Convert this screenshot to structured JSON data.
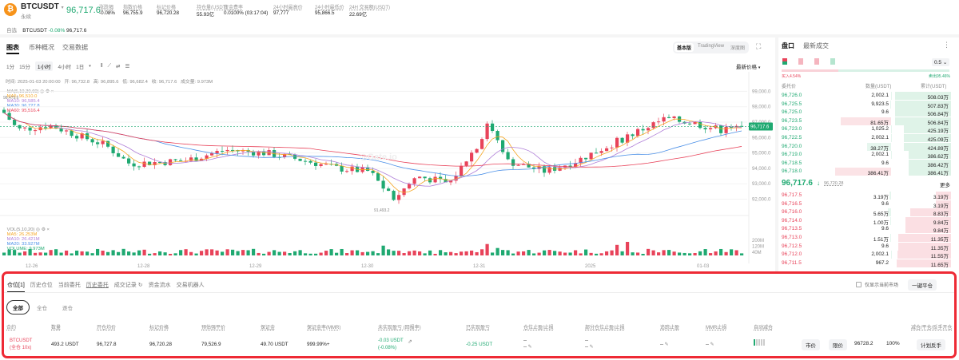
{
  "header": {
    "symbol": "BTCUSDT",
    "sub": "永续",
    "last_price": "96,717.6",
    "stats": [
      {
        "label": "涨跌幅",
        "value": "-0.08%",
        "color": "green"
      },
      {
        "label": "指数价格",
        "value": "96,755.9"
      },
      {
        "label": "标记价格",
        "value": "96,720.28"
      },
      {
        "label": "持仓量(USDT)",
        "value": "55.93亿"
      },
      {
        "label": "资金费率",
        "value": "0.0100% (03:17:04)"
      },
      {
        "label": "24小时最高价",
        "value": "97,777"
      },
      {
        "label": "24小时最低价",
        "value": "95,866.5"
      },
      {
        "label": "24H 交易额(USDT)",
        "value": "22.69亿"
      }
    ]
  },
  "watch": {
    "label": "自选",
    "symbol": "BTCUSDT",
    "change": "-0.08%",
    "price": "96,717.6"
  },
  "chart_tabs": [
    "图表",
    "币种概况",
    "交易数据"
  ],
  "intervals": [
    "1分",
    "15分",
    "1小时",
    "4小时",
    "1日"
  ],
  "view_modes": [
    "基本版",
    "TradingView",
    "深度图"
  ],
  "price_type": "最新价格",
  "ohlc": "时间: 2025-01-03 20:00:00   开: 96,732.8   高: 96,895.6   低: 96,682.4   收: 96,717.6   成交量: 9.973M",
  "ma": {
    "label": "MA(5,10,30,60)",
    "ma5": "MA5: 96,510.0",
    "ma10": "MA10: 96,585.4",
    "ma30": "MA30: 96,727.8",
    "ma60": "MA60: 95,516.4"
  },
  "vol": {
    "label": "VOL(5,10,20)",
    "ma5": "MA5: 26.253M",
    "ma10": "MA10: 26.421M",
    "ma20": "MA20: 33.927M",
    "volume": "VOLUME: 9.973M"
  },
  "price_axis": [
    "99,000.0",
    "98,000.0",
    "97,000.0",
    "96,000.0",
    "95,000.0",
    "94,000.0",
    "93,000.0",
    "92,000.0"
  ],
  "price_tag": "96,717.6",
  "high_label": "98,473.6",
  "low_label": "91,493.2",
  "vol_axis": [
    "200M",
    "120M",
    "40M"
  ],
  "x_axis": [
    "12-26",
    "12-28",
    "12-29",
    "12-30",
    "12-31",
    "2025",
    "01-03"
  ],
  "colors": {
    "up": "#e8435a",
    "down": "#1fa971",
    "ma5": "#f5a623",
    "ma10": "#b07fd8",
    "ma30": "#4a8fe7",
    "ma60": "#e8435a"
  },
  "orderbook": {
    "tabs": [
      "盘口",
      "最新成交"
    ],
    "precision": "0.5",
    "buy_pct": "买入4.54%",
    "sell_pct": "卖出95.46%",
    "headers": [
      "委托价",
      "数量(USDT)",
      "累计(USDT)"
    ],
    "asks": [
      [
        "96,726.0",
        "2,002.1",
        "508.03万"
      ],
      [
        "96,725.5",
        "9,923.5",
        "507.83万"
      ],
      [
        "96,725.0",
        "9.6",
        "506.84万"
      ],
      [
        "96,723.5",
        "81.65万",
        "506.84万"
      ],
      [
        "96,723.0",
        "1,025.2",
        "425.19万"
      ],
      [
        "96,722.5",
        "2,002.1",
        "425.09万"
      ],
      [
        "96,720.0",
        "38.27万",
        "424.89万"
      ],
      [
        "96,719.0",
        "2,002.1",
        "386.62万"
      ],
      [
        "96,718.5",
        "9.6",
        "386.42万"
      ],
      [
        "96,718.0",
        "386.41万",
        "386.41万"
      ]
    ],
    "mid_price": "96,717.6",
    "mark": "96,720.28",
    "more": "更多",
    "bids": [
      [
        "96,717.5",
        "3.19万",
        "3.19万"
      ],
      [
        "96,716.5",
        "9.6",
        "3.19万"
      ],
      [
        "96,716.0",
        "5.65万",
        "8.83万"
      ],
      [
        "96,714.0",
        "1.00万",
        "9.84万"
      ],
      [
        "96,713.5",
        "9.6",
        "9.84万"
      ],
      [
        "96,713.0",
        "1.51万",
        "11.35万"
      ],
      [
        "96,712.5",
        "9.6",
        "11.35万"
      ],
      [
        "96,712.0",
        "2,002.1",
        "11.55万"
      ],
      [
        "96,711.5",
        "967.2",
        "11.65万"
      ]
    ]
  },
  "bottom": {
    "tabs": [
      "仓位[1]",
      "历史仓位",
      "当前委托",
      "历史委托",
      "成交记录",
      "资金流水",
      "交易机器人"
    ],
    "filters": [
      "全部",
      "全仓",
      "逐仓"
    ],
    "only_current": "仅显示当前市场",
    "close_all": "一键平仓",
    "columns": [
      "合约",
      "数量",
      "开仓均价",
      "标记价格",
      "预估强平价",
      "保证金",
      "保证金率(MMR)",
      "未实现盈亏 (回报率)",
      "已实现盈亏",
      "仓位止盈/止损",
      "部分仓位止盈/止损",
      "追踪止盈",
      "MMR止损",
      "自动减仓",
      "减仓/平仓/反手开仓"
    ],
    "row": {
      "contract": "BTCUSDT",
      "mode": "(全仓 10x)",
      "qty": "493.2 USDT",
      "entry": "96,727.8",
      "mark": "96,720.28",
      "liq": "79,526.9",
      "margin": "49.70 USDT",
      "mmr": "999.99%+",
      "upnl": "-0.03 USDT",
      "upnl_pct": "(-0.08%)",
      "rpnl": "-0.25 USDT",
      "tpsl": "--",
      "ptpsl": "--",
      "trail": "--",
      "mmrsl": "--",
      "market": "市价",
      "limit": "限价",
      "limit_price": "96728.2",
      "pct": "100%",
      "reverse": "计划反手"
    }
  }
}
